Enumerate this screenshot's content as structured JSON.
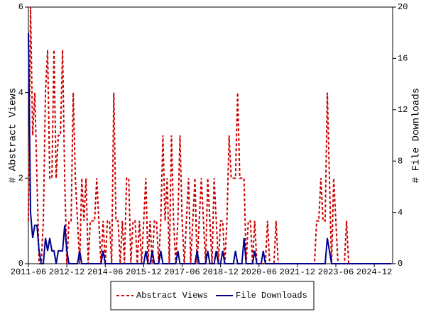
{
  "chart_data": {
    "type": "line",
    "x": [
      "2011-06",
      "2011-07",
      "2011-08",
      "2011-09",
      "2011-10",
      "2011-11",
      "2011-12",
      "2012-01",
      "2012-02",
      "2012-03",
      "2012-04",
      "2012-05",
      "2012-06",
      "2012-07",
      "2012-08",
      "2012-09",
      "2012-10",
      "2012-11",
      "2012-12",
      "2013-01",
      "2013-02",
      "2013-03",
      "2013-04",
      "2013-05",
      "2013-06",
      "2013-07",
      "2013-08",
      "2013-09",
      "2013-10",
      "2013-11",
      "2013-12",
      "2014-01",
      "2014-02",
      "2014-03",
      "2014-04",
      "2014-05",
      "2014-06",
      "2014-07",
      "2014-08",
      "2014-09",
      "2014-10",
      "2014-11",
      "2014-12",
      "2015-01",
      "2015-02",
      "2015-03",
      "2015-04",
      "2015-05",
      "2015-06",
      "2015-07",
      "2015-08",
      "2015-09",
      "2015-10",
      "2015-11",
      "2015-12",
      "2016-01",
      "2016-02",
      "2016-03",
      "2016-04",
      "2016-05",
      "2016-06",
      "2016-07",
      "2016-08",
      "2016-09",
      "2016-10",
      "2016-11",
      "2016-12",
      "2017-01",
      "2017-02",
      "2017-03",
      "2017-04",
      "2017-05",
      "2017-06",
      "2017-07",
      "2017-08",
      "2017-09",
      "2017-10",
      "2017-11",
      "2017-12",
      "2018-01",
      "2018-02",
      "2018-03",
      "2018-04",
      "2018-05",
      "2018-06",
      "2018-07",
      "2018-08",
      "2018-09",
      "2018-10",
      "2018-11",
      "2018-12",
      "2019-01",
      "2019-02",
      "2019-03",
      "2019-04",
      "2019-05",
      "2019-06",
      "2019-07",
      "2019-08",
      "2019-09",
      "2019-10",
      "2019-11",
      "2019-12",
      "2020-01",
      "2020-02",
      "2020-03",
      "2020-04",
      "2020-05",
      "2020-06",
      "2020-07",
      "2020-08",
      "2020-09",
      "2020-10",
      "2020-11",
      "2020-12",
      "2021-01",
      "2021-02",
      "2021-03",
      "2021-04",
      "2021-05",
      "2021-06",
      "2021-07",
      "2021-08",
      "2021-09",
      "2021-10",
      "2021-11",
      "2021-12",
      "2022-01",
      "2022-02",
      "2022-03",
      "2022-04",
      "2022-05",
      "2022-06",
      "2022-07",
      "2022-08",
      "2022-09",
      "2022-10",
      "2022-11",
      "2022-12",
      "2023-01",
      "2023-02",
      "2023-03",
      "2023-04",
      "2023-05",
      "2023-06",
      "2023-07",
      "2023-08",
      "2023-09",
      "2023-10",
      "2023-11",
      "2023-12",
      "2024-01",
      "2024-02",
      "2024-03",
      "2024-04",
      "2024-05",
      "2024-06",
      "2024-07",
      "2024-08",
      "2024-09",
      "2024-10",
      "2024-11",
      "2024-12",
      "2025-01",
      "2025-02",
      "2025-03",
      "2025-04",
      "2025-05",
      "2025-06",
      "2025-07",
      "2025-08"
    ],
    "series": [
      {
        "name": "Abstract Views",
        "color": "#cc0000",
        "dash": true,
        "axis": "y",
        "values": [
          1,
          6,
          3,
          4,
          2,
          0,
          0,
          1,
          4,
          5,
          2,
          2,
          5,
          2,
          3,
          3,
          5,
          2,
          0,
          1,
          1,
          4,
          2,
          1,
          0,
          2,
          1,
          2,
          0,
          1,
          1,
          1,
          2,
          1,
          0,
          1,
          0,
          1,
          1,
          0,
          4,
          1,
          1,
          0,
          1,
          0,
          2,
          2,
          0,
          1,
          1,
          0,
          1,
          0,
          1,
          2,
          0,
          1,
          0,
          1,
          1,
          0,
          1,
          3,
          1,
          2,
          0,
          3,
          1,
          0,
          1,
          3,
          1,
          0,
          1,
          2,
          0,
          1,
          2,
          0,
          1,
          2,
          1,
          0,
          2,
          1,
          0,
          2,
          1,
          0,
          1,
          1,
          0,
          1,
          3,
          2,
          2,
          2,
          4,
          2,
          2,
          2,
          0,
          1,
          1,
          0,
          1,
          0,
          0,
          0,
          0,
          0,
          1,
          0,
          0,
          0,
          1,
          0,
          0,
          0,
          0,
          0,
          0,
          0,
          0,
          0,
          0,
          0,
          0,
          0,
          0,
          0,
          0,
          0,
          0,
          1,
          1,
          2,
          1,
          1,
          4,
          2,
          0,
          2,
          1,
          0,
          0,
          0,
          0,
          1,
          0,
          0,
          0,
          0,
          0,
          0,
          0,
          0,
          0,
          0,
          0,
          0,
          0,
          0,
          0,
          0,
          0,
          0,
          0,
          0,
          0
        ]
      },
      {
        "name": "File Downloads",
        "color": "#00008b",
        "dash": false,
        "axis": "y2",
        "values": [
          18,
          4,
          2,
          3,
          3,
          1,
          0,
          0,
          2,
          1,
          2,
          1,
          1,
          0,
          1,
          1,
          1,
          3,
          1,
          0,
          0,
          0,
          0,
          0,
          1,
          0,
          0,
          0,
          0,
          0,
          0,
          0,
          0,
          0,
          0,
          1,
          0,
          0,
          0,
          0,
          0,
          0,
          0,
          0,
          0,
          0,
          0,
          0,
          0,
          0,
          0,
          0,
          0,
          0,
          0,
          1,
          0,
          0,
          1,
          0,
          0,
          0,
          1,
          0,
          0,
          0,
          0,
          0,
          0,
          0,
          1,
          0,
          0,
          0,
          0,
          0,
          0,
          0,
          0,
          1,
          0,
          0,
          0,
          0,
          1,
          0,
          0,
          0,
          1,
          0,
          0,
          1,
          0,
          0,
          0,
          0,
          0,
          1,
          0,
          0,
          0,
          2,
          0,
          0,
          0,
          0,
          1,
          0,
          0,
          0,
          1,
          0,
          0,
          0,
          0,
          0,
          0,
          0,
          0,
          0,
          0,
          0,
          0,
          0,
          0,
          0,
          0,
          0,
          0,
          0,
          0,
          0,
          0,
          0,
          0,
          0,
          0,
          0,
          0,
          0,
          2,
          1,
          0,
          0,
          0,
          0,
          0,
          0,
          0,
          0,
          0,
          0,
          0,
          0,
          0,
          0,
          0,
          0,
          0,
          0,
          0,
          0,
          0,
          0,
          0,
          0,
          0,
          0,
          0,
          0,
          0
        ]
      }
    ],
    "xticks": [
      "2011-06",
      "2012-12",
      "2014-06",
      "2015-12",
      "2017-06",
      "2018-12",
      "2020-06",
      "2021-12",
      "2023-06",
      "2024-12"
    ],
    "ylabel": "# Abstract Views",
    "y2label": "# File Downloads",
    "ylim": [
      0,
      6
    ],
    "yticks": [
      0,
      2,
      4,
      6
    ],
    "y2lim": [
      0,
      20
    ],
    "y2ticks": [
      0,
      4,
      8,
      12,
      16,
      20
    ],
    "legend": "bottom"
  }
}
